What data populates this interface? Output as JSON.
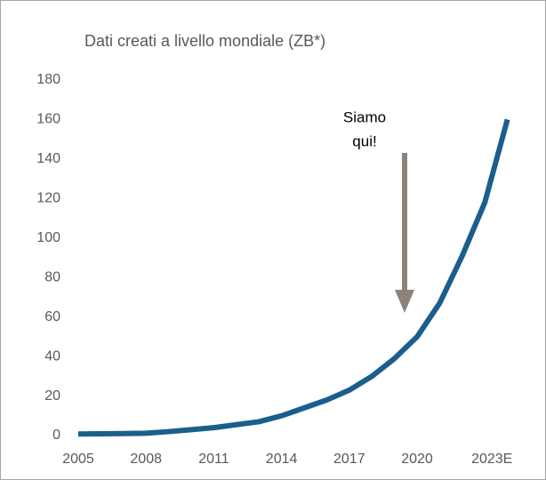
{
  "chart_data": {
    "type": "line",
    "title": "Dati creati a livello mondiale (ZB*)",
    "annotations": [
      "Siamo",
      "qui!"
    ],
    "x": [
      2005,
      2006,
      2007,
      2008,
      2009,
      2010,
      2011,
      2012,
      2013,
      2014,
      2015,
      2016,
      2017,
      2018,
      2019,
      2020,
      2021,
      2022,
      2023,
      2024
    ],
    "series": [
      {
        "name": "Dati creati",
        "color": "#1b5e8e",
        "values": [
          0.8,
          0.9,
          1,
          1.2,
          2,
          3,
          4,
          5.5,
          7,
          10,
          14,
          18,
          23,
          30,
          39,
          50,
          67,
          91,
          118,
          160
        ]
      }
    ],
    "xlim": [
      2005,
      2025
    ],
    "xticks": [
      2005,
      2008,
      2011,
      2014,
      2017,
      2020,
      {
        "value": 2023,
        "label": "2023E"
      }
    ],
    "ylim": [
      0,
      180
    ],
    "yticks": [
      0,
      20,
      40,
      60,
      80,
      100,
      120,
      140,
      160,
      180
    ],
    "grid": false
  }
}
